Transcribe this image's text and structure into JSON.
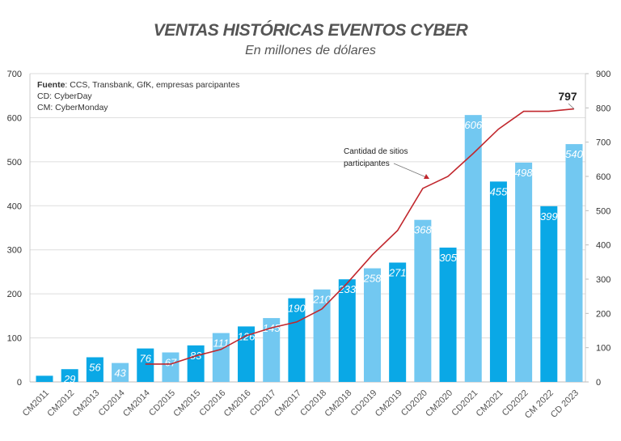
{
  "chart_data": {
    "type": "bar",
    "title": "VENTAS HISTÓRICAS EVENTOS CYBER",
    "subtitle": "En millones de dólares",
    "categories": [
      "CM2011",
      "CM2012",
      "CM2013",
      "CD2014",
      "CM2014",
      "CD2015",
      "CM2015",
      "CD2016",
      "CM2016",
      "CD2017",
      "CM2017",
      "CD2018",
      "CM2018",
      "CD2019",
      "CM2019",
      "CD2020",
      "CM2020",
      "CD2021",
      "CM2021",
      "CD2022",
      "CM 2022",
      "CD 2023"
    ],
    "series": [
      {
        "type": "bar",
        "axis": "left",
        "values": [
          14,
          29,
          56,
          43,
          76,
          67,
          83,
          111,
          126,
          145,
          190,
          210,
          233,
          258,
          271,
          368,
          305,
          606,
          455,
          498,
          399,
          540
        ],
        "labels": [
          "",
          "29",
          "56",
          "43",
          "76",
          "67",
          "83",
          "111",
          "126",
          "145",
          "190",
          "210",
          "233",
          "258",
          "271",
          "368",
          "305",
          "606",
          "455",
          "498",
          "399",
          "540"
        ]
      },
      {
        "type": "line",
        "axis": "right",
        "name": "Cantidad de sitios participantes",
        "values": [
          null,
          null,
          null,
          null,
          52,
          52,
          76,
          95,
          135,
          158,
          175,
          213,
          288,
          371,
          442,
          565,
          600,
          667,
          738,
          790,
          790,
          797
        ],
        "end_label": "797"
      }
    ],
    "y_left": {
      "range": [
        0,
        700
      ],
      "ticks": [
        "0",
        "100",
        "200",
        "300",
        "400",
        "500",
        "600",
        "700"
      ]
    },
    "y_right": {
      "range": [
        0,
        900
      ],
      "ticks": [
        "0",
        "100",
        "200",
        "300",
        "400",
        "500",
        "600",
        "700",
        "800",
        "900"
      ]
    },
    "grid": true,
    "colors": {
      "CM": "#0aa8e6",
      "CD": "#72c8f1",
      "line": "#c1272d"
    },
    "notes": {
      "source_label": "Fuente",
      "source_text": ": CCS, Transbank, GfK, empresas parcipantes",
      "cd": "CD: CyberDay",
      "cm": "CM: CyberMonday"
    }
  }
}
